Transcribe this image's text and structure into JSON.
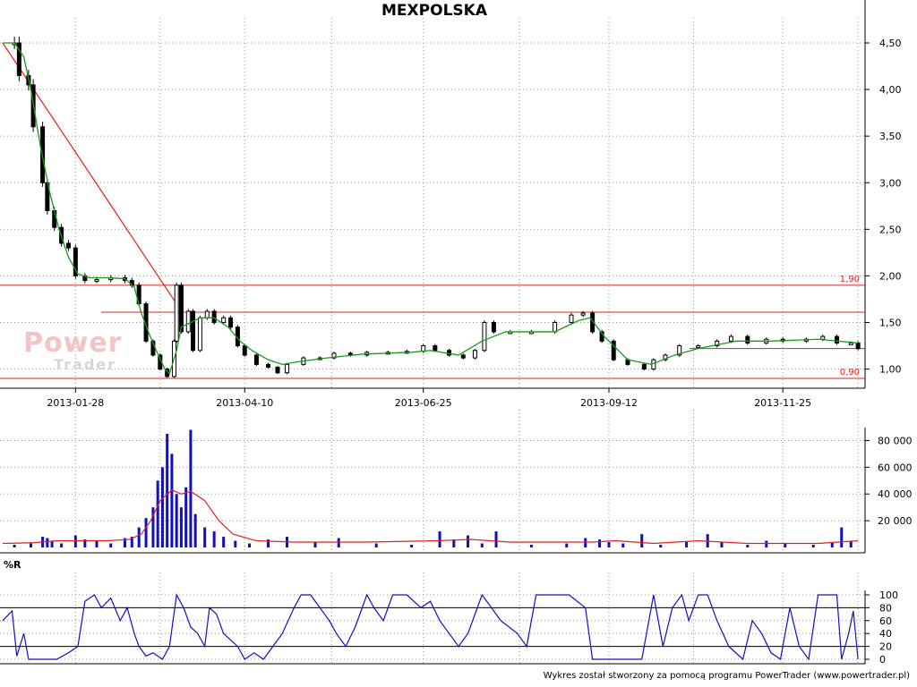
{
  "title": "MEXPOLSKA",
  "watermark": {
    "line1": "Power",
    "line2": "Trader"
  },
  "footer": "Wykres został stworzony za pomocą programu PowerTrader (www.powertrader.pl)",
  "colors": {
    "candle": "#000000",
    "ma": "#1a9a1a",
    "trend": "#e02020",
    "volume": "#1010c0",
    "volume_ma": "#e02020",
    "wr": "#1010c0",
    "grid": "#999999"
  },
  "chart_data": [
    {
      "type": "candlestick",
      "title": "MEXPOLSKA",
      "ylim": [
        0.9,
        4.5
      ],
      "y_ticks": [
        "4,50",
        "4,00",
        "3,50",
        "3,00",
        "2,50",
        "2,00",
        "1,50",
        "1,00"
      ],
      "x_tick_labels": [
        "2013-01-28",
        "2013-04-10",
        "2013-06-25",
        "2013-09-12",
        "2013-11-25"
      ],
      "levels": [
        {
          "value": 1.9,
          "label": "1,90"
        },
        {
          "value": 1.61,
          "label": ""
        },
        {
          "value": 1.22,
          "label": ""
        },
        {
          "value": 0.9,
          "label": "0,90"
        }
      ],
      "trendline": {
        "from": [
          "2012-12-28",
          4.5
        ],
        "to": [
          "2013-03-12",
          1.7
        ]
      },
      "close_path": [
        [
          "2012-12-28",
          4.5
        ],
        [
          "2013-01-02",
          4.5
        ],
        [
          "2013-01-04",
          4.15
        ],
        [
          "2013-01-08",
          4.05
        ],
        [
          "2013-01-10",
          3.6
        ],
        [
          "2013-01-14",
          3.0
        ],
        [
          "2013-01-16",
          2.7
        ],
        [
          "2013-01-19",
          2.52
        ],
        [
          "2013-01-22",
          2.35
        ],
        [
          "2013-01-25",
          2.3
        ],
        [
          "2013-01-28",
          2.0
        ],
        [
          "2013-02-01",
          1.95
        ],
        [
          "2013-02-06",
          1.96
        ],
        [
          "2013-02-12",
          1.98
        ],
        [
          "2013-02-18",
          1.95
        ],
        [
          "2013-02-21",
          1.9
        ],
        [
          "2013-02-24",
          1.7
        ],
        [
          "2013-02-27",
          1.3
        ],
        [
          "2013-03-02",
          1.15
        ],
        [
          "2013-03-05",
          1.0
        ],
        [
          "2013-03-08",
          0.92
        ],
        [
          "2013-03-11",
          1.3
        ],
        [
          "2013-03-12",
          1.9
        ],
        [
          "2013-03-14",
          1.4
        ],
        [
          "2013-03-17",
          1.62
        ],
        [
          "2013-03-19",
          1.2
        ],
        [
          "2013-03-22",
          1.55
        ],
        [
          "2013-03-25",
          1.62
        ],
        [
          "2013-03-28",
          1.5
        ],
        [
          "2013-04-01",
          1.55
        ],
        [
          "2013-04-04",
          1.45
        ],
        [
          "2013-04-07",
          1.25
        ],
        [
          "2013-04-10",
          1.15
        ],
        [
          "2013-04-15",
          1.05
        ],
        [
          "2013-04-20",
          1.02
        ],
        [
          "2013-04-24",
          0.96
        ],
        [
          "2013-04-28",
          1.05
        ],
        [
          "2013-05-05",
          1.12
        ],
        [
          "2013-05-12",
          1.12
        ],
        [
          "2013-05-18",
          1.17
        ],
        [
          "2013-05-25",
          1.15
        ],
        [
          "2013-06-01",
          1.18
        ],
        [
          "2013-06-10",
          1.18
        ],
        [
          "2013-06-18",
          1.19
        ],
        [
          "2013-06-25",
          1.25
        ],
        [
          "2013-06-30",
          1.2
        ],
        [
          "2013-07-06",
          1.15
        ],
        [
          "2013-07-12",
          1.12
        ],
        [
          "2013-07-17",
          1.2
        ],
        [
          "2013-07-21",
          1.5
        ],
        [
          "2013-07-25",
          1.4
        ],
        [
          "2013-08-01",
          1.4
        ],
        [
          "2013-08-10",
          1.4
        ],
        [
          "2013-08-20",
          1.5
        ],
        [
          "2013-08-27",
          1.58
        ],
        [
          "2013-09-01",
          1.6
        ],
        [
          "2013-09-05",
          1.4
        ],
        [
          "2013-09-09",
          1.3
        ],
        [
          "2013-09-14",
          1.1
        ],
        [
          "2013-09-20",
          1.05
        ],
        [
          "2013-09-27",
          1.0
        ],
        [
          "2013-10-01",
          1.1
        ],
        [
          "2013-10-06",
          1.15
        ],
        [
          "2013-10-12",
          1.25
        ],
        [
          "2013-10-20",
          1.25
        ],
        [
          "2013-10-28",
          1.3
        ],
        [
          "2013-11-03",
          1.35
        ],
        [
          "2013-11-10",
          1.28
        ],
        [
          "2013-11-18",
          1.32
        ],
        [
          "2013-11-25",
          1.3
        ],
        [
          "2013-12-05",
          1.32
        ],
        [
          "2013-12-12",
          1.35
        ],
        [
          "2013-12-18",
          1.28
        ],
        [
          "2013-12-24",
          1.28
        ],
        [
          "2013-12-27",
          1.22
        ]
      ],
      "ma_path": [
        [
          "2012-12-28",
          4.5
        ],
        [
          "2013-01-02",
          4.5
        ],
        [
          "2013-01-06",
          4.35
        ],
        [
          "2013-01-09",
          4.0
        ],
        [
          "2013-01-13",
          3.4
        ],
        [
          "2013-01-17",
          2.9
        ],
        [
          "2013-01-21",
          2.5
        ],
        [
          "2013-01-25",
          2.2
        ],
        [
          "2013-01-29",
          2.02
        ],
        [
          "2013-02-03",
          1.98
        ],
        [
          "2013-02-10",
          1.98
        ],
        [
          "2013-02-18",
          1.97
        ],
        [
          "2013-02-22",
          1.88
        ],
        [
          "2013-02-25",
          1.6
        ],
        [
          "2013-02-28",
          1.4
        ],
        [
          "2013-03-03",
          1.22
        ],
        [
          "2013-03-07",
          1.0
        ],
        [
          "2013-03-09",
          0.95
        ],
        [
          "2013-03-12",
          1.2
        ],
        [
          "2013-03-14",
          1.45
        ],
        [
          "2013-03-18",
          1.5
        ],
        [
          "2013-03-22",
          1.55
        ],
        [
          "2013-03-28",
          1.55
        ],
        [
          "2013-04-03",
          1.45
        ],
        [
          "2013-04-08",
          1.3
        ],
        [
          "2013-04-13",
          1.2
        ],
        [
          "2013-04-20",
          1.1
        ],
        [
          "2013-04-26",
          1.05
        ],
        [
          "2013-05-03",
          1.08
        ],
        [
          "2013-05-15",
          1.12
        ],
        [
          "2013-05-30",
          1.16
        ],
        [
          "2013-06-20",
          1.18
        ],
        [
          "2013-06-28",
          1.2
        ],
        [
          "2013-07-10",
          1.15
        ],
        [
          "2013-07-20",
          1.3
        ],
        [
          "2013-07-30",
          1.4
        ],
        [
          "2013-08-20",
          1.4
        ],
        [
          "2013-08-30",
          1.52
        ],
        [
          "2013-09-04",
          1.55
        ],
        [
          "2013-09-10",
          1.35
        ],
        [
          "2013-09-20",
          1.1
        ],
        [
          "2013-09-30",
          1.05
        ],
        [
          "2013-10-10",
          1.15
        ],
        [
          "2013-10-20",
          1.22
        ],
        [
          "2013-11-05",
          1.3
        ],
        [
          "2013-11-20",
          1.3
        ],
        [
          "2013-12-10",
          1.32
        ],
        [
          "2013-12-27",
          1.28
        ]
      ]
    },
    {
      "type": "bar",
      "name": "volume",
      "ylim": [
        0,
        90000
      ],
      "y_ticks": [
        "80 000",
        "60 000",
        "40 000",
        "20 000"
      ],
      "bars": [
        [
          "2013-01-02",
          2000
        ],
        [
          "2013-01-09",
          3000
        ],
        [
          "2013-01-14",
          8000
        ],
        [
          "2013-01-16",
          7000
        ],
        [
          "2013-01-18",
          5000
        ],
        [
          "2013-01-22",
          3000
        ],
        [
          "2013-01-28",
          9000
        ],
        [
          "2013-02-01",
          6000
        ],
        [
          "2013-02-06",
          5000
        ],
        [
          "2013-02-12",
          3000
        ],
        [
          "2013-02-18",
          7000
        ],
        [
          "2013-02-21",
          8000
        ],
        [
          "2013-02-24",
          15000
        ],
        [
          "2013-02-27",
          22000
        ],
        [
          "2013-03-02",
          30000
        ],
        [
          "2013-03-04",
          50000
        ],
        [
          "2013-03-06",
          60000
        ],
        [
          "2013-03-08",
          85000
        ],
        [
          "2013-03-10",
          70000
        ],
        [
          "2013-03-12",
          40000
        ],
        [
          "2013-03-14",
          30000
        ],
        [
          "2013-03-16",
          45000
        ],
        [
          "2013-03-18",
          88000
        ],
        [
          "2013-03-20",
          25000
        ],
        [
          "2013-03-24",
          15000
        ],
        [
          "2013-03-28",
          12000
        ],
        [
          "2013-04-01",
          8000
        ],
        [
          "2013-04-06",
          5000
        ],
        [
          "2013-04-12",
          3000
        ],
        [
          "2013-04-20",
          6000
        ],
        [
          "2013-04-28",
          8000
        ],
        [
          "2013-05-10",
          4000
        ],
        [
          "2013-05-20",
          7000
        ],
        [
          "2013-06-05",
          3000
        ],
        [
          "2013-06-20",
          2000
        ],
        [
          "2013-07-02",
          12000
        ],
        [
          "2013-07-08",
          6000
        ],
        [
          "2013-07-14",
          9000
        ],
        [
          "2013-07-20",
          3000
        ],
        [
          "2013-07-26",
          12000
        ],
        [
          "2013-08-10",
          2000
        ],
        [
          "2013-08-25",
          3000
        ],
        [
          "2013-09-02",
          7000
        ],
        [
          "2013-09-08",
          6000
        ],
        [
          "2013-09-12",
          4000
        ],
        [
          "2013-09-18",
          3000
        ],
        [
          "2013-09-26",
          10000
        ],
        [
          "2013-10-04",
          2000
        ],
        [
          "2013-10-15",
          4000
        ],
        [
          "2013-10-24",
          10000
        ],
        [
          "2013-10-30",
          4000
        ],
        [
          "2013-11-10",
          2000
        ],
        [
          "2013-11-18",
          5000
        ],
        [
          "2013-11-26",
          3000
        ],
        [
          "2013-12-08",
          2000
        ],
        [
          "2013-12-16",
          4000
        ],
        [
          "2013-12-20",
          15000
        ],
        [
          "2013-12-24",
          5000
        ]
      ],
      "ma": [
        [
          "2012-12-28",
          3000
        ],
        [
          "2013-01-10",
          3500
        ],
        [
          "2013-01-20",
          5000
        ],
        [
          "2013-02-10",
          5000
        ],
        [
          "2013-02-20",
          6000
        ],
        [
          "2013-02-25",
          10000
        ],
        [
          "2013-03-01",
          20000
        ],
        [
          "2013-03-05",
          35000
        ],
        [
          "2013-03-10",
          43000
        ],
        [
          "2013-03-14",
          40000
        ],
        [
          "2013-03-18",
          42000
        ],
        [
          "2013-03-24",
          35000
        ],
        [
          "2013-03-30",
          20000
        ],
        [
          "2013-04-05",
          10000
        ],
        [
          "2013-04-15",
          5000
        ],
        [
          "2013-05-01",
          4000
        ],
        [
          "2013-06-01",
          4000
        ],
        [
          "2013-07-01",
          5000
        ],
        [
          "2013-07-15",
          6000
        ],
        [
          "2013-08-01",
          4000
        ],
        [
          "2013-09-05",
          4000
        ],
        [
          "2013-09-15",
          5000
        ],
        [
          "2013-10-01",
          3000
        ],
        [
          "2013-10-20",
          5000
        ],
        [
          "2013-11-10",
          3000
        ],
        [
          "2013-12-10",
          3000
        ],
        [
          "2013-12-27",
          5000
        ]
      ]
    },
    {
      "type": "line",
      "name": "%R",
      "ylim": [
        0,
        100
      ],
      "y_ticks": [
        "100",
        "80",
        "60",
        "40",
        "20",
        "0"
      ],
      "reference_lines": [
        20,
        80
      ],
      "values": [
        [
          "2012-12-28",
          60
        ],
        [
          "2013-01-01",
          75
        ],
        [
          "2013-01-03",
          5
        ],
        [
          "2013-01-06",
          40
        ],
        [
          "2013-01-08",
          0
        ],
        [
          "2013-01-14",
          0
        ],
        [
          "2013-01-20",
          0
        ],
        [
          "2013-01-25",
          10
        ],
        [
          "2013-01-29",
          20
        ],
        [
          "2013-02-01",
          90
        ],
        [
          "2013-02-05",
          100
        ],
        [
          "2013-02-08",
          80
        ],
        [
          "2013-02-12",
          95
        ],
        [
          "2013-02-16",
          60
        ],
        [
          "2013-02-19",
          80
        ],
        [
          "2013-02-22",
          40
        ],
        [
          "2013-02-24",
          20
        ],
        [
          "2013-02-27",
          5
        ],
        [
          "2013-03-02",
          10
        ],
        [
          "2013-03-06",
          0
        ],
        [
          "2013-03-09",
          20
        ],
        [
          "2013-03-12",
          100
        ],
        [
          "2013-03-15",
          80
        ],
        [
          "2013-03-18",
          50
        ],
        [
          "2013-03-21",
          40
        ],
        [
          "2013-03-24",
          20
        ],
        [
          "2013-03-26",
          80
        ],
        [
          "2013-03-29",
          70
        ],
        [
          "2013-04-01",
          40
        ],
        [
          "2013-04-04",
          30
        ],
        [
          "2013-04-07",
          20
        ],
        [
          "2013-04-10",
          0
        ],
        [
          "2013-04-14",
          10
        ],
        [
          "2013-04-18",
          0
        ],
        [
          "2013-04-22",
          20
        ],
        [
          "2013-04-26",
          40
        ],
        [
          "2013-05-01",
          80
        ],
        [
          "2013-05-04",
          100
        ],
        [
          "2013-05-08",
          100
        ],
        [
          "2013-05-12",
          80
        ],
        [
          "2013-05-16",
          60
        ],
        [
          "2013-05-19",
          40
        ],
        [
          "2013-05-23",
          20
        ],
        [
          "2013-05-27",
          50
        ],
        [
          "2013-06-01",
          100
        ],
        [
          "2013-06-04",
          80
        ],
        [
          "2013-06-08",
          60
        ],
        [
          "2013-06-12",
          100
        ],
        [
          "2013-06-18",
          100
        ],
        [
          "2013-06-24",
          80
        ],
        [
          "2013-06-28",
          90
        ],
        [
          "2013-07-02",
          60
        ],
        [
          "2013-07-06",
          40
        ],
        [
          "2013-07-10",
          20
        ],
        [
          "2013-07-14",
          40
        ],
        [
          "2013-07-20",
          100
        ],
        [
          "2013-07-24",
          80
        ],
        [
          "2013-07-28",
          60
        ],
        [
          "2013-08-04",
          40
        ],
        [
          "2013-08-08",
          20
        ],
        [
          "2013-08-12",
          100
        ],
        [
          "2013-08-18",
          100
        ],
        [
          "2013-08-26",
          100
        ],
        [
          "2013-09-02",
          80
        ],
        [
          "2013-09-05",
          0
        ],
        [
          "2013-09-12",
          0
        ],
        [
          "2013-09-20",
          0
        ],
        [
          "2013-09-26",
          0
        ],
        [
          "2013-10-01",
          100
        ],
        [
          "2013-10-05",
          20
        ],
        [
          "2013-10-09",
          80
        ],
        [
          "2013-10-13",
          100
        ],
        [
          "2013-10-16",
          60
        ],
        [
          "2013-10-20",
          100
        ],
        [
          "2013-10-24",
          100
        ],
        [
          "2013-10-28",
          60
        ],
        [
          "2013-11-02",
          20
        ],
        [
          "2013-11-08",
          0
        ],
        [
          "2013-11-12",
          60
        ],
        [
          "2013-11-16",
          40
        ],
        [
          "2013-11-20",
          10
        ],
        [
          "2013-11-24",
          0
        ],
        [
          "2013-11-28",
          80
        ],
        [
          "2013-12-02",
          20
        ],
        [
          "2013-12-06",
          0
        ],
        [
          "2013-12-10",
          100
        ],
        [
          "2013-12-14",
          100
        ],
        [
          "2013-12-18",
          100
        ],
        [
          "2013-12-20",
          0
        ],
        [
          "2013-12-23",
          40
        ],
        [
          "2013-12-25",
          75
        ],
        [
          "2013-12-27",
          0
        ]
      ]
    }
  ]
}
